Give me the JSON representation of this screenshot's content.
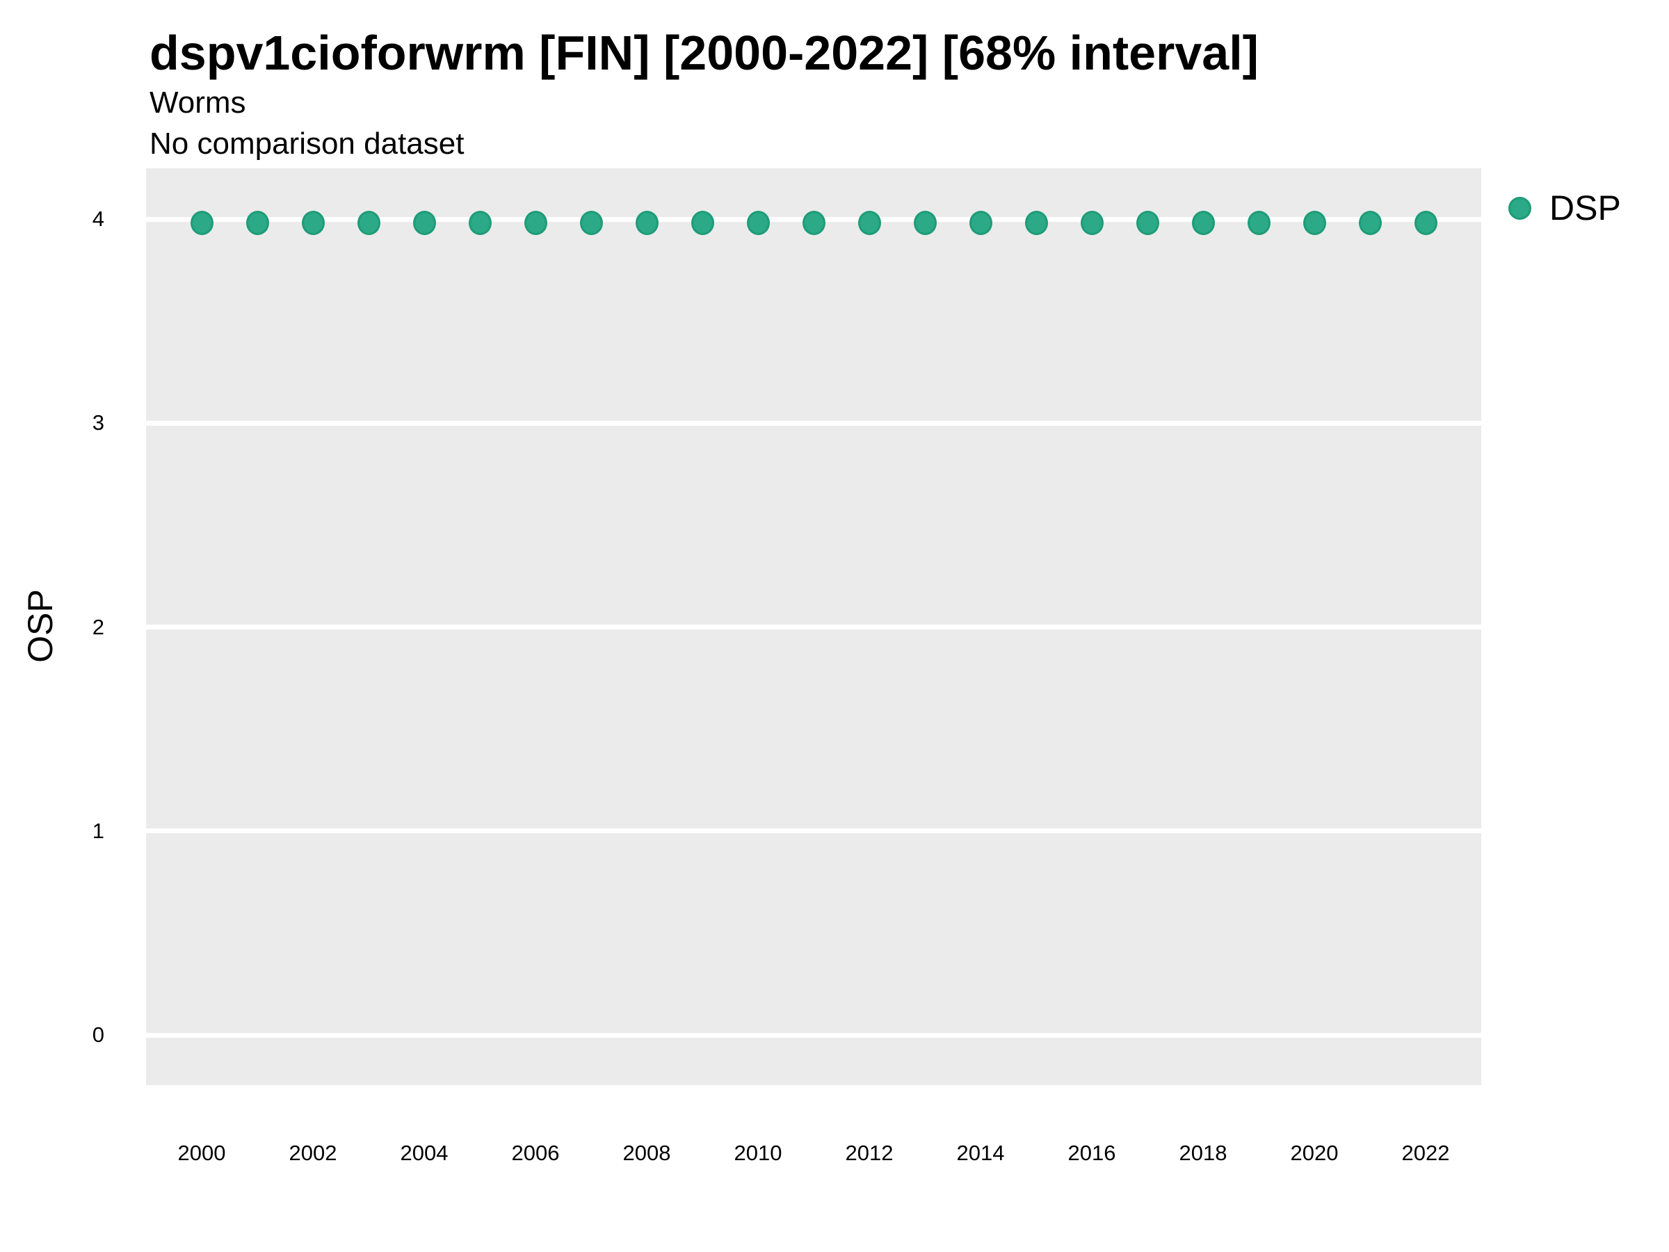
{
  "chart_data": {
    "type": "scatter",
    "title": "dspv1cioforwrm [FIN] [2000-2022] [68% interval]",
    "subtitle": "Worms",
    "note": "No comparison dataset",
    "xlabel": "",
    "ylabel": "OSP",
    "x": [
      2000,
      2001,
      2002,
      2003,
      2004,
      2005,
      2006,
      2007,
      2008,
      2009,
      2010,
      2011,
      2012,
      2013,
      2014,
      2015,
      2016,
      2017,
      2018,
      2019,
      2020,
      2021,
      2022
    ],
    "series": [
      {
        "name": "DSP",
        "values": [
          3.98,
          3.98,
          3.98,
          3.98,
          3.98,
          3.98,
          3.98,
          3.98,
          3.98,
          3.98,
          3.98,
          3.98,
          3.98,
          3.98,
          3.98,
          3.98,
          3.98,
          3.98,
          3.98,
          3.98,
          3.98,
          3.98,
          3.98
        ],
        "fill": "#2CA987",
        "stroke": "#1E9C77"
      }
    ],
    "x_tick_labels": [
      "2000",
      "2002",
      "2004",
      "2006",
      "2008",
      "2010",
      "2012",
      "2014",
      "2016",
      "2018",
      "2020",
      "2022"
    ],
    "y_ticks": [
      0,
      1,
      2,
      3,
      4
    ],
    "y_tick_labels": [
      "0",
      "1",
      "2",
      "3",
      "4"
    ],
    "ylim": [
      -0.25,
      4.26
    ],
    "xlim": [
      1999,
      2023
    ],
    "grid": {
      "major_y": true,
      "minor": false,
      "color": "#FFFFFF"
    },
    "panel_bg": "#EBEBEB",
    "legend_position": "right",
    "text_color": "#000000"
  }
}
